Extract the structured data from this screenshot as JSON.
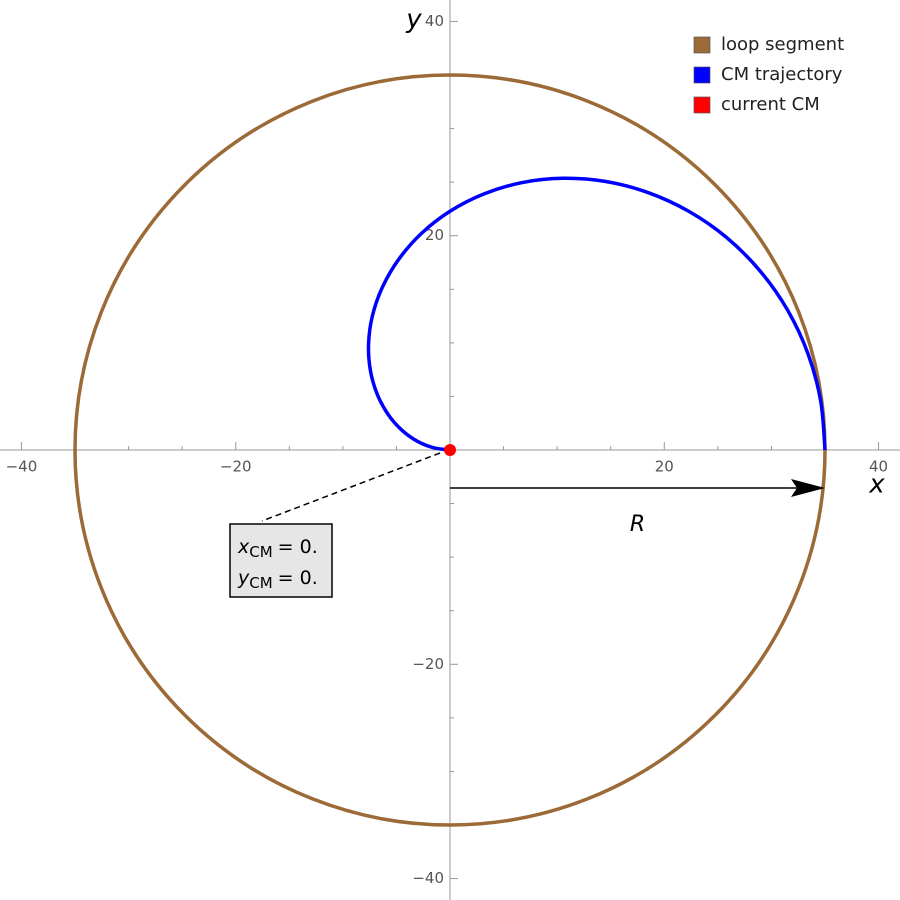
{
  "chart_data": {
    "type": "parametric",
    "xlabel": "x",
    "ylabel": "y",
    "xlim": [
      -42,
      42
    ],
    "ylim": [
      -42,
      42
    ],
    "xticks": [
      {
        "value": -40,
        "label": "−40"
      },
      {
        "value": -20,
        "label": "−20"
      },
      20,
      40
    ],
    "yticks": [
      {
        "value": -40,
        "label": "−40"
      },
      {
        "value": -20,
        "label": "−20"
      },
      20,
      40
    ],
    "xminorticks": [
      -35,
      -30,
      -25,
      -15,
      -10,
      -5,
      5,
      10,
      15,
      25,
      30,
      35
    ],
    "yminorticks": [
      -35,
      -30,
      -25,
      -15,
      -10,
      -5,
      5,
      10,
      15,
      25,
      30,
      35
    ],
    "legend": "top-right",
    "series": [
      {
        "name": "loop segment",
        "color": "#9c6a36",
        "radius": 35
      },
      {
        "name": "CM trajectory",
        "color": "#0000ff",
        "x": [
          35,
          34.6,
          33.42,
          31.51,
          28.94,
          25.83,
          22.28,
          18.45,
          14.47,
          10.5,
          6.68,
          3.15,
          0,
          -2.66,
          -4.77,
          -6.3,
          -7.24,
          -7.6,
          -7.43,
          -6.8,
          -5.79,
          -4.5,
          -3.04,
          -1.5,
          0
        ],
        "y": [
          0,
          4.56,
          8.96,
          13.05,
          16.71,
          19.82,
          22.28,
          24.04,
          25.07,
          25.36,
          24.95,
          23.89,
          22.28,
          20.22,
          17.82,
          15.21,
          12.53,
          9.9,
          7.43,
          5.22,
          3.34,
          1.86,
          0.81,
          0.2,
          0
        ]
      },
      {
        "name": "current CM",
        "color": "#ff0000",
        "x": [
          0
        ],
        "y": [
          0
        ]
      }
    ],
    "callout": [
      {
        "symbol": "x",
        "subscript": "CM",
        "text": "= 0."
      },
      {
        "symbol": "y",
        "subscript": "CM",
        "text": "= 0."
      }
    ],
    "arrow_label": "R"
  }
}
